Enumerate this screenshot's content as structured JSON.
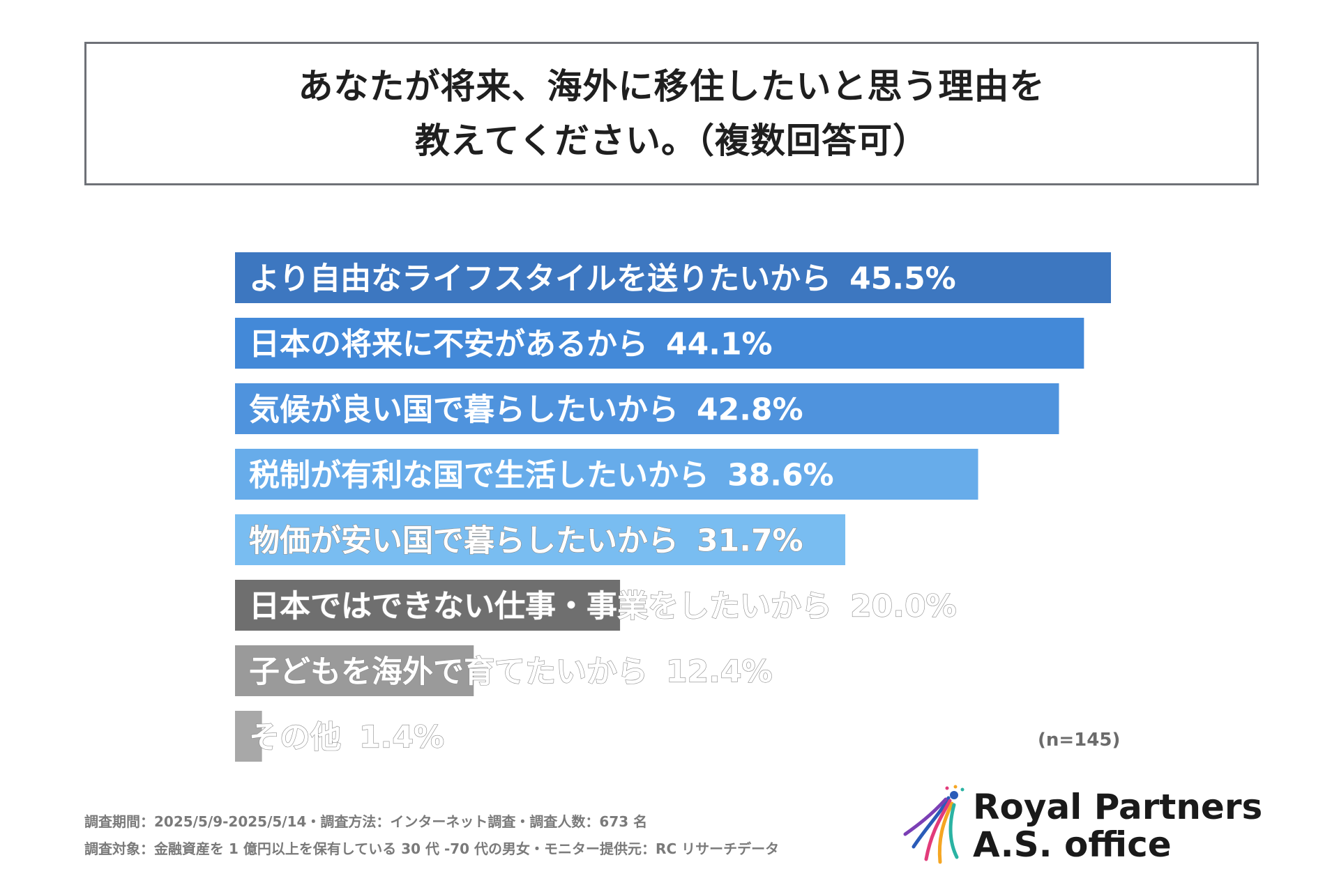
{
  "title": {
    "line1": "あなたが将来、海外に移住したいと思う理由を",
    "line2": "教えてください。（複数回答可）"
  },
  "chart_data": {
    "type": "bar",
    "orientation": "horizontal",
    "categories": [
      "より自由なライフスタイルを送りたいから",
      "日本の将来に不安があるから",
      "気候が良い国で暮らしたいから",
      "税制が有利な国で生活したいから",
      "物価が安い国で暮らしたいから",
      "日本ではできない仕事・事業をしたいから",
      "子どもを海外で育てたいから",
      "その他"
    ],
    "values": [
      45.5,
      44.1,
      42.8,
      38.6,
      31.7,
      20.0,
      12.4,
      1.4
    ],
    "value_labels": [
      "45.5%",
      "44.1%",
      "42.8%",
      "38.6%",
      "31.7%",
      "20.0%",
      "12.4%",
      "1.4%"
    ],
    "colors": [
      "#3d77c0",
      "#4389d8",
      "#4f93dd",
      "#67acea",
      "#79bdf1",
      "#6f6f6f",
      "#9a9a9a",
      "#a8a8a8"
    ],
    "xlim": [
      0,
      45.5
    ],
    "grid": false,
    "legend": "none"
  },
  "sample_size": "(n=145)",
  "footnotes": {
    "line1": "調査期間：2025/5/9-2025/5/14・調査方法：インターネット調査・調査人数：673 名",
    "line2": "調査対象：金融資産を 1 億円以上を保有している 30 代 -70 代の男女・モニター提供元：RC リサーチデータ"
  },
  "logo": {
    "line1": "Royal Partners",
    "line2": "A.S. office",
    "colors": [
      "#2a5bb8",
      "#e23b7a",
      "#f5a623",
      "#2bb3a3",
      "#7b3fb5"
    ]
  }
}
